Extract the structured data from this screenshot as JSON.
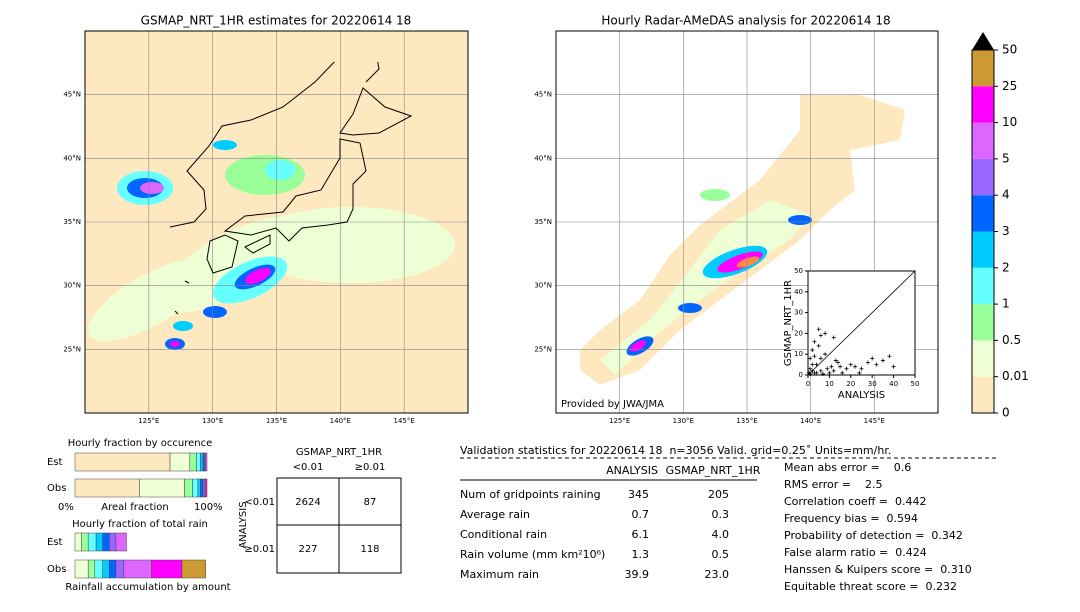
{
  "maps": [
    {
      "title": "GSMAP_NRT_1HR estimates for 20220614 18",
      "lonlim": [
        120,
        150
      ],
      "latlim": [
        20,
        50
      ],
      "lonticks": [
        {
          "value": 125,
          "label": "125°E"
        },
        {
          "value": 130,
          "label": "130°E"
        },
        {
          "value": 135,
          "label": "135°E"
        },
        {
          "value": 140,
          "label": "140°E"
        },
        {
          "value": 145,
          "label": "145°E"
        }
      ],
      "latticks": [
        {
          "value": 25,
          "label": "25°N"
        },
        {
          "value": 30,
          "label": "30°N"
        },
        {
          "value": 35,
          "label": "35°N"
        },
        {
          "value": 40,
          "label": "40°N"
        },
        {
          "value": 45,
          "label": "45°N"
        }
      ]
    },
    {
      "title": "Hourly Radar-AMeDAS analysis for 20220614 18",
      "lonlim": [
        120,
        150
      ],
      "latlim": [
        20,
        50
      ],
      "lonticks": [
        {
          "value": 125,
          "label": "125°E"
        },
        {
          "value": 130,
          "label": "130°E"
        },
        {
          "value": 135,
          "label": "135°E"
        },
        {
          "value": 140,
          "label": "140°E"
        },
        {
          "value": 145,
          "label": "145°E"
        }
      ],
      "latticks": [
        {
          "value": 25,
          "label": "25°N"
        },
        {
          "value": 30,
          "label": "30°N"
        },
        {
          "value": 35,
          "label": "35°N"
        },
        {
          "value": 40,
          "label": "40°N"
        },
        {
          "value": 45,
          "label": "45°N"
        }
      ],
      "credit": "Provided by JWA/JMA"
    }
  ],
  "colorbar": {
    "levels": [
      0,
      0.01,
      0.5,
      1,
      2,
      3,
      4,
      5,
      10,
      25,
      50
    ],
    "colors": [
      "#fee8c0",
      "#eeffd6",
      "#99ff99",
      "#66ffff",
      "#00ccff",
      "#0066ff",
      "#9966ff",
      "#dd66ff",
      "#ff00ff",
      "#cc9933"
    ],
    "extend_color": "#000000"
  },
  "scatter": {
    "type": "scatter",
    "xlabel": "ANALYSIS",
    "ylabel": "GSMAP_NRT_1HR",
    "xlim": [
      0,
      50
    ],
    "ylim": [
      0,
      50
    ],
    "xticks": [
      0,
      10,
      20,
      30,
      40,
      50
    ],
    "yticks": [
      0,
      10,
      20,
      30,
      40,
      50
    ],
    "x": [
      2,
      3,
      4,
      5,
      1,
      2,
      3,
      6,
      8,
      12,
      15,
      18,
      20,
      22,
      25,
      28,
      30,
      32,
      35,
      38,
      40,
      13,
      10,
      7,
      1,
      0.5,
      4,
      6,
      9,
      16,
      3,
      8,
      12,
      5,
      6,
      14,
      24,
      2,
      1,
      11
    ],
    "y": [
      12,
      9,
      5,
      14,
      3,
      2,
      1,
      8,
      10,
      2,
      4,
      3,
      5,
      4,
      3,
      6,
      8,
      5,
      7,
      9,
      4,
      7,
      1,
      0.5,
      0.5,
      1,
      1,
      2,
      3,
      1,
      16,
      20,
      18,
      22,
      19,
      6,
      1,
      5,
      8,
      4
    ]
  },
  "occurrence": {
    "title": "Hourly fraction by occurence",
    "xlabel": "Areal fraction",
    "xmin_label": "0%",
    "xmax_label": "100%",
    "rows": [
      {
        "name": "Est",
        "values": [
          0.72,
          0.15,
          0.05,
          0.03,
          0.02,
          0.01,
          0.01,
          0.01,
          0,
          0
        ]
      },
      {
        "name": "Obs",
        "values": [
          0.49,
          0.34,
          0.06,
          0.04,
          0.02,
          0.02,
          0.01,
          0.01,
          0.01,
          0
        ]
      }
    ]
  },
  "total_rain": {
    "title": "Hourly fraction of total rain",
    "xlabel": "Rainfall accumulation by amount",
    "rows": [
      {
        "name": "Est",
        "values": [
          0,
          0.05,
          0.05,
          0.06,
          0.05,
          0.05,
          0.05,
          0.08,
          0,
          0
        ]
      },
      {
        "name": "Obs",
        "values": [
          0,
          0.1,
          0.05,
          0.06,
          0.05,
          0.05,
          0.06,
          0.21,
          0.23,
          0.18
        ]
      }
    ]
  },
  "contingency": {
    "title": "GSMAP_NRT_1HR",
    "col_labels": [
      "<0.01",
      "≥0.01"
    ],
    "row_title": "ANALYSIS",
    "row_labels": [
      "<0.01",
      "≥0.01"
    ],
    "cells": [
      [
        "2624",
        "87"
      ],
      [
        "227",
        "118"
      ]
    ]
  },
  "stats": {
    "title": "Validation statistics for 20220614 18  n=3056 Valid. grid=0.25˚ Units=mm/hr.",
    "headers": [
      "ANALYSIS",
      "GSMAP_NRT_1HR"
    ],
    "rows": [
      {
        "label": "Num of gridpoints raining",
        "values": [
          "345",
          "205"
        ]
      },
      {
        "label": "Average rain",
        "values": [
          "0.7",
          "0.3"
        ]
      },
      {
        "label": "Conditional rain",
        "values": [
          "6.1",
          "4.0"
        ]
      },
      {
        "label": "Rain volume (mm km²10⁶)",
        "values": [
          "1.3",
          "0.5"
        ]
      },
      {
        "label": "Maximum rain",
        "values": [
          "39.9",
          "23.0"
        ]
      }
    ],
    "scores": [
      "Mean abs error =    0.6",
      "RMS error =    2.5",
      "Correlation coeff =  0.442",
      "Frequency bias =  0.594",
      "Probability of detection =  0.342",
      "False alarm ratio =  0.424",
      "Hanssen & Kuipers score =  0.310",
      "Equitable threat score =  0.232"
    ]
  }
}
